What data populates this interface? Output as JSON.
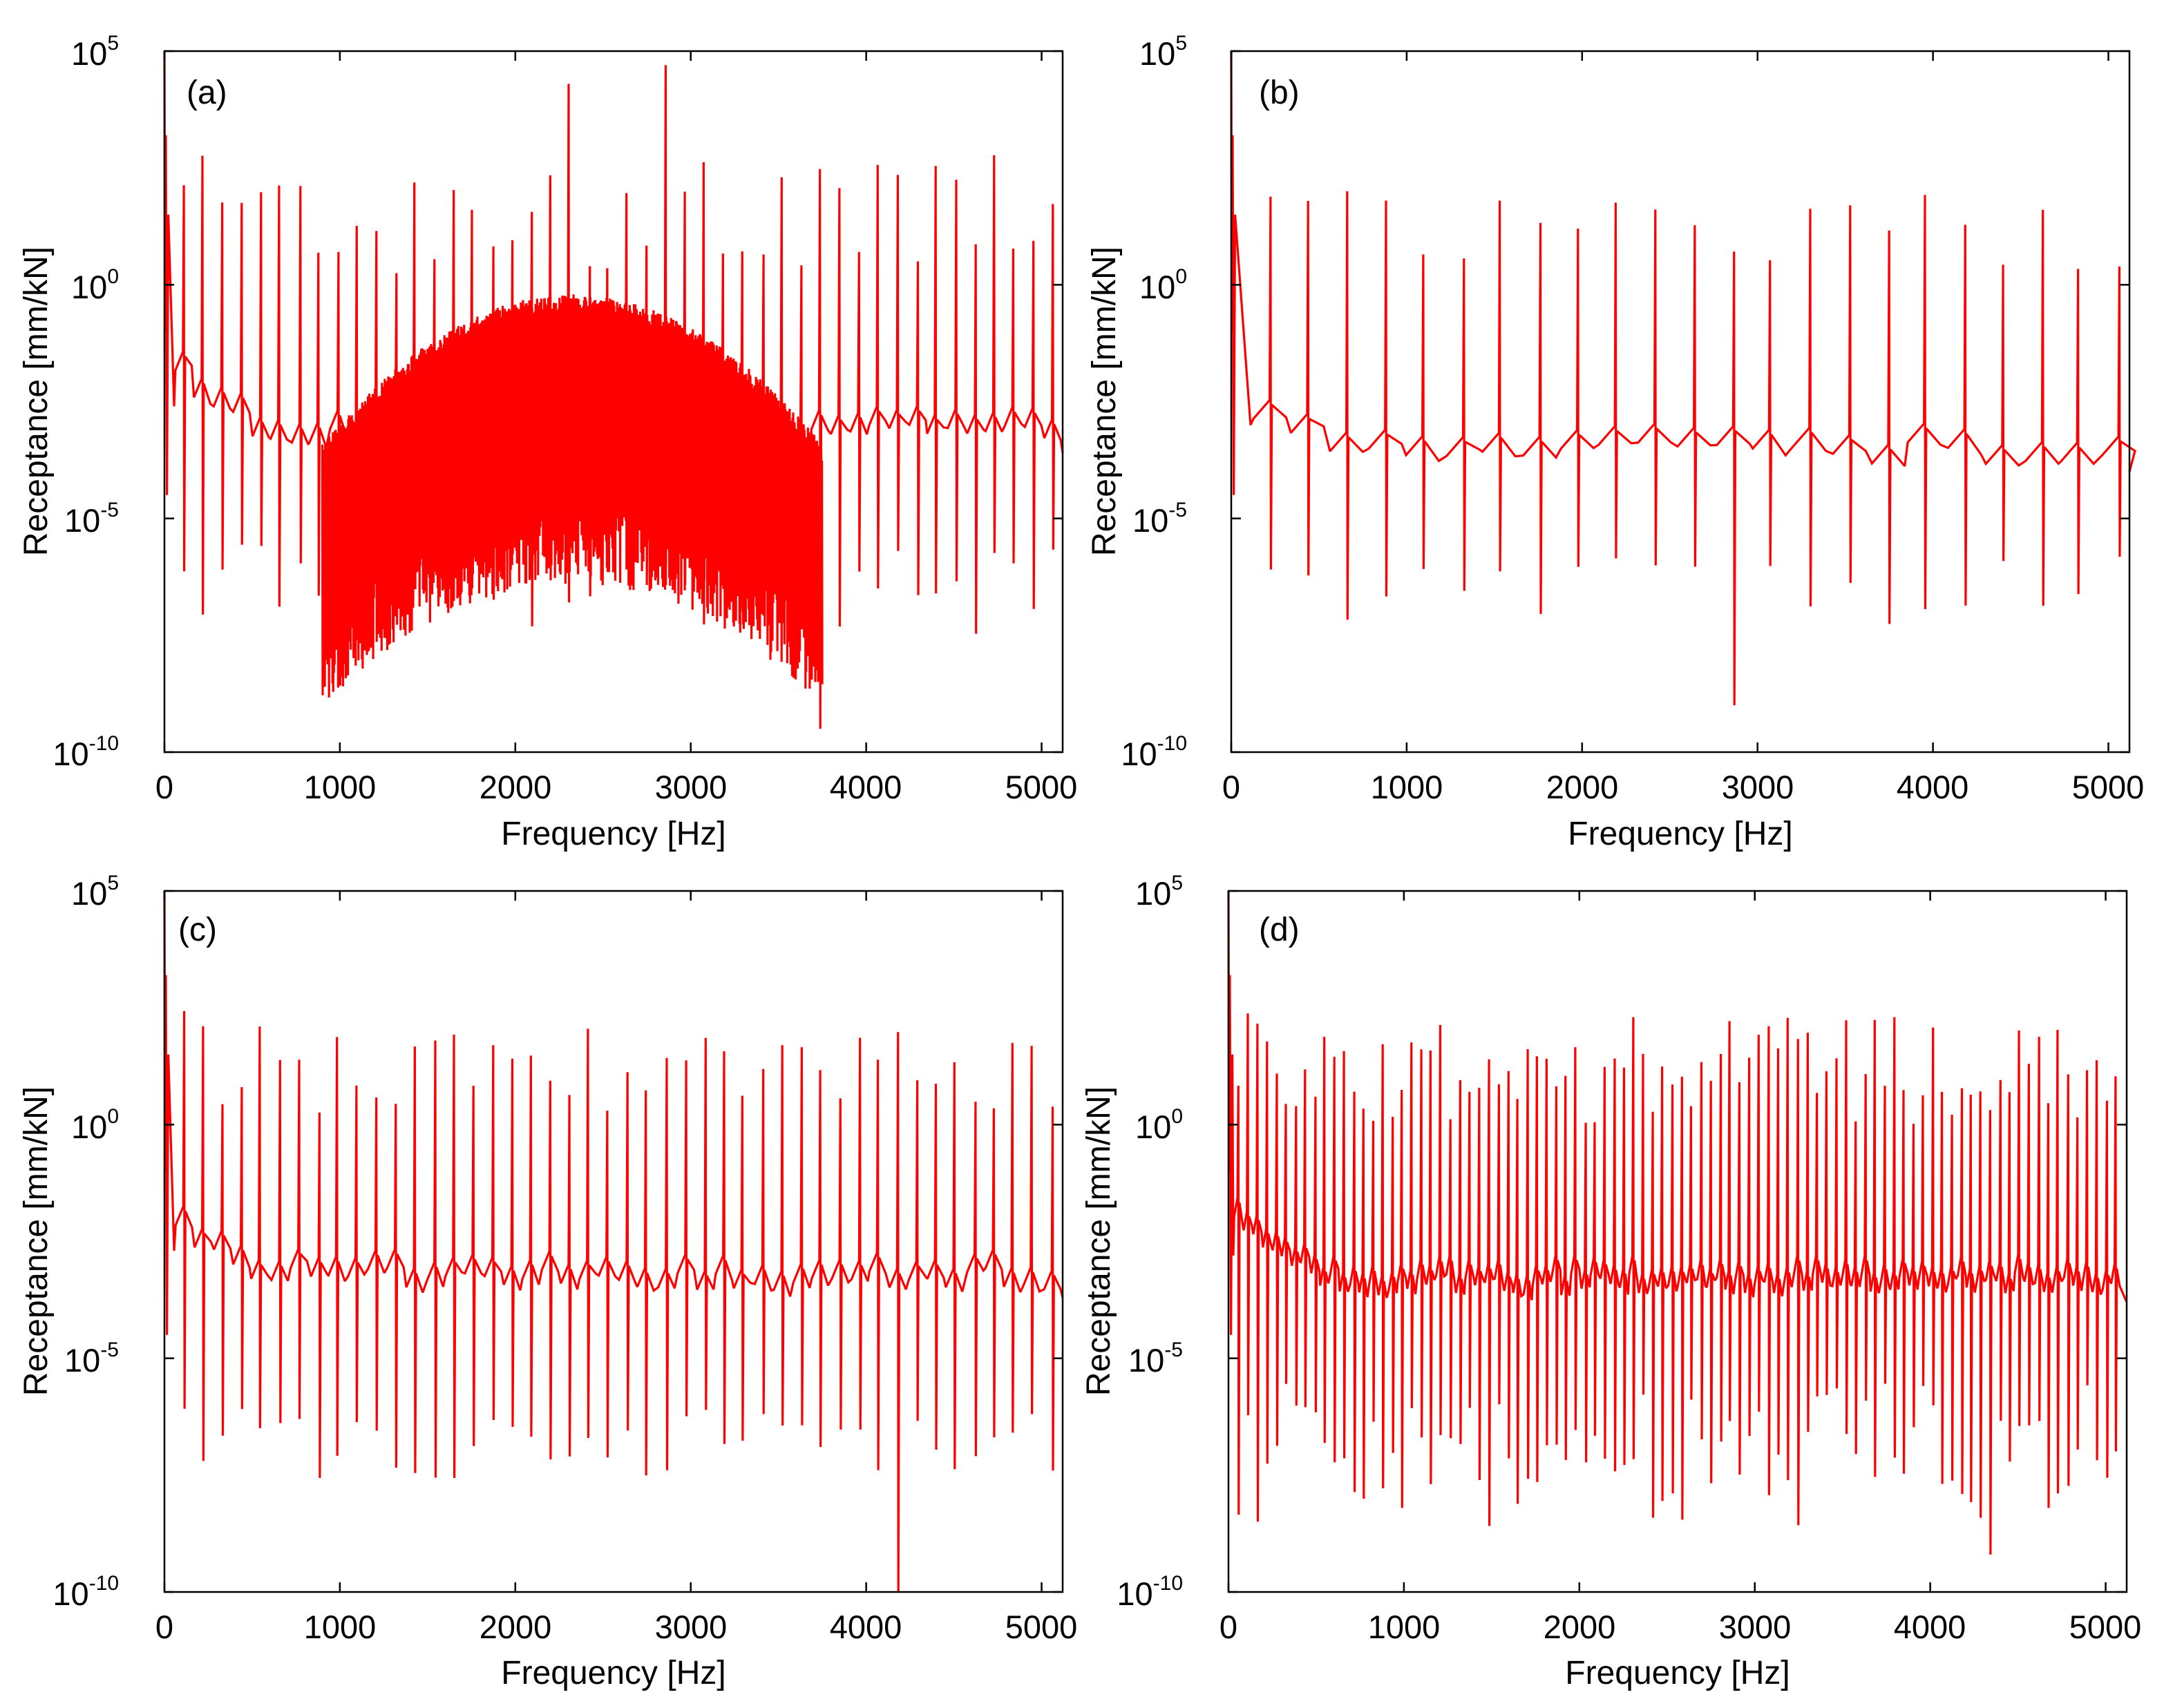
{
  "figure": {
    "trace_color": "#ff0000",
    "axis_color": "#000000"
  },
  "chart_data": [
    {
      "panel": "(a)",
      "type": "line",
      "xlabel": "Frequency [Hz]",
      "ylabel": "Receptance [mm/kN]",
      "xlim": [
        0,
        5120
      ],
      "ylim_log10": [
        -10,
        5
      ],
      "yscale": "log",
      "xticks": [
        "0",
        "1000",
        "2000",
        "3000",
        "4000",
        "5000"
      ],
      "yticks": [
        {
          "base": "10",
          "exp": "5"
        },
        {
          "base": "10",
          "exp": "0"
        },
        {
          "base": "10",
          "exp": "-5"
        },
        {
          "base": "10",
          "exp": "-10"
        }
      ],
      "series": [
        {
          "name": "receptance",
          "description": "resonance/antiresonance comb on log scale",
          "resonance_spacing_hz": 110,
          "background_log10": -3.2,
          "peak_log10_range": [
            0.2,
            3.0
          ],
          "antiresonance_log10_range": [
            -7.5,
            -5.5
          ],
          "dense_band_hz": [
            900,
            3750
          ],
          "dense_band_envelope_peak_log10": -0.2,
          "highlight_peaks": [
            {
              "x": 2300,
              "y_log10": 4.3
            },
            {
              "x": 2830,
              "y_log10": 4.7
            }
          ],
          "deepest_dip": {
            "x": 3710,
            "y_log10": -9.5
          }
        }
      ]
    },
    {
      "panel": "(b)",
      "type": "line",
      "xlabel": "Frequency [Hz]",
      "ylabel": "Receptance [mm/kN]",
      "xlim": [
        0,
        5120
      ],
      "ylim_log10": [
        -10,
        5
      ],
      "yscale": "log",
      "xticks": [
        "0",
        "1000",
        "2000",
        "3000",
        "4000",
        "5000"
      ],
      "yticks": [
        {
          "base": "10",
          "exp": "5"
        },
        {
          "base": "10",
          "exp": "0"
        },
        {
          "base": "10",
          "exp": "-5"
        },
        {
          "base": "10",
          "exp": "-10"
        }
      ],
      "series": [
        {
          "name": "receptance",
          "description": "resonance/antiresonance comb on log scale",
          "resonance_spacing_hz": 220,
          "background_log10": -3.6,
          "peak_log10_range": [
            0.3,
            2.0
          ],
          "antiresonance_log10_range": [
            -7.4,
            -5.8
          ],
          "highlight_peaks": [
            {
              "x": 590,
              "y_log10": 2.0
            },
            {
              "x": 1590,
              "y_log10": 1.8
            },
            {
              "x": 3560,
              "y_log10": 1.7
            }
          ],
          "deepest_dip": {
            "x": 2770,
            "y_log10": -9.0
          }
        }
      ]
    },
    {
      "panel": "(c)",
      "type": "line",
      "xlabel": "Frequency [Hz]",
      "ylabel": "Receptance [mm/kN]",
      "xlim": [
        0,
        5120
      ],
      "ylim_log10": [
        -10,
        5
      ],
      "yscale": "log",
      "xticks": [
        "0",
        "1000",
        "2000",
        "3000",
        "4000",
        "5000"
      ],
      "yticks": [
        {
          "base": "10",
          "exp": "5"
        },
        {
          "base": "10",
          "exp": "0"
        },
        {
          "base": "10",
          "exp": "-5"
        },
        {
          "base": "10",
          "exp": "-10"
        }
      ],
      "series": [
        {
          "name": "receptance",
          "description": "resonance/antiresonance comb on log scale",
          "resonance_spacing_hz": 110,
          "background_log10": -3.3,
          "peak_log10_range": [
            0.2,
            2.1
          ],
          "antiresonance_log10_range": [
            -7.6,
            -6.0
          ],
          "highlight_peaks": [
            {
              "x": 590,
              "y_log10": 2.1
            },
            {
              "x": 1590,
              "y_log10": 1.8
            },
            {
              "x": 3560,
              "y_log10": 1.7
            }
          ],
          "deepest_dip": {
            "x": 4170,
            "y_log10": -10.0
          }
        }
      ]
    },
    {
      "panel": "(d)",
      "type": "line",
      "xlabel": "Frequency [Hz]",
      "ylabel": "Receptance [mm/kN]",
      "xlim": [
        0,
        5120
      ],
      "ylim_log10": [
        -10,
        5
      ],
      "yscale": "log",
      "xticks": [
        "0",
        "1000",
        "2000",
        "3000",
        "4000",
        "5000"
      ],
      "yticks": [
        {
          "base": "10",
          "exp": "5"
        },
        {
          "base": "10",
          "exp": "0"
        },
        {
          "base": "10",
          "exp": "-5"
        },
        {
          "base": "10",
          "exp": "-10"
        }
      ],
      "series": [
        {
          "name": "receptance",
          "description": "dense resonance/antiresonance comb on log scale",
          "resonance_spacing_hz": 55,
          "background_log10": -3.4,
          "peak_log10_range": [
            0.0,
            2.3
          ],
          "antiresonance_log10_range": [
            -8.6,
            -5.5
          ],
          "highlight_peaks": [
            {
              "x": 2320,
              "y_log10": 2.3
            },
            {
              "x": 4540,
              "y_log10": 1.3
            }
          ],
          "deepest_dip": {
            "x": 4340,
            "y_log10": -9.2
          }
        }
      ]
    }
  ]
}
